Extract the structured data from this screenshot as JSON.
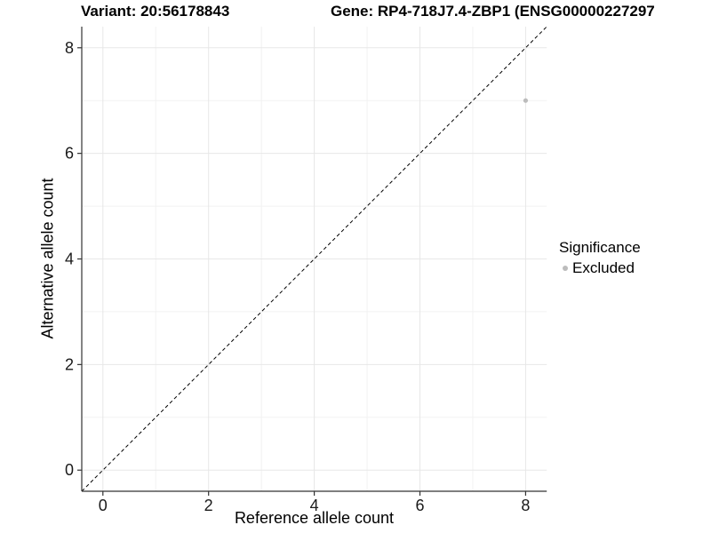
{
  "header": {
    "variant_title": "Variant: 20:56178843",
    "gene_title": "Gene: RP4-718J7.4-ZBP1 (ENSG00000227297"
  },
  "chart_data": {
    "type": "scatter",
    "title_left": "Variant: 20:56178843",
    "title_right": "Gene: RP4-718J7.4-ZBP1 (ENSG00000227297",
    "xlabel": "Reference allele count",
    "ylabel": "Alternative allele count",
    "xlim": [
      -0.4,
      8.4
    ],
    "ylim": [
      -0.4,
      8.4
    ],
    "x_ticks": [
      0,
      2,
      4,
      6,
      8
    ],
    "y_ticks": [
      0,
      2,
      4,
      6,
      8
    ],
    "x_minor_ticks": [
      1,
      3,
      5,
      7
    ],
    "y_minor_ticks": [
      1,
      3,
      5,
      7
    ],
    "grid": true,
    "identity_line": {
      "slope": 1,
      "intercept": 0,
      "style": "dashed",
      "color": "#000000"
    },
    "series": [
      {
        "name": "Excluded",
        "color": "#bcbcbc",
        "points": [
          {
            "x": 8,
            "y": 7
          }
        ]
      }
    ],
    "legend": {
      "title": "Significance",
      "position": "right",
      "entries": [
        {
          "label": "Excluded",
          "color": "#bcbcbc"
        }
      ]
    },
    "colors": {
      "grid_major": "#e7e7e7",
      "grid_minor": "#f2f2f2",
      "axis_line": "#333333",
      "tick_mark": "#333333",
      "tick_label": "#1a1a1a",
      "point": "#bcbcbc"
    }
  }
}
